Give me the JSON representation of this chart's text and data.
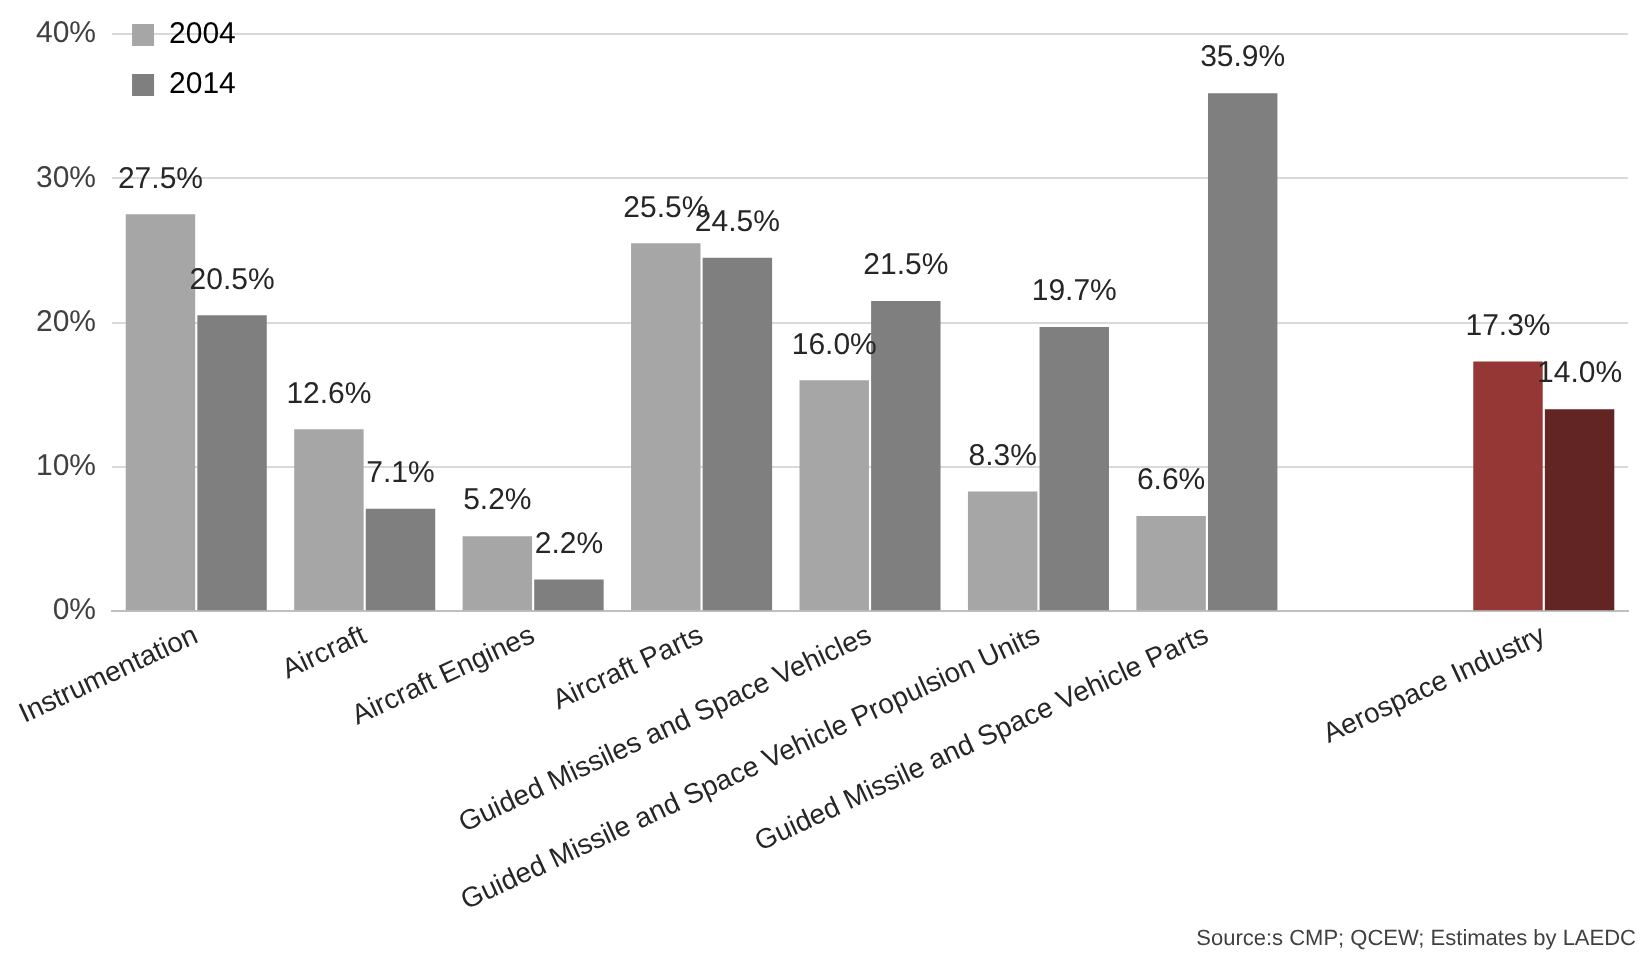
{
  "chart_data": {
    "type": "bar",
    "categories": [
      "Instrumentation",
      "Aircraft",
      "Aircraft Engines",
      "Aircraft Parts",
      "Guided Missiles and Space Vehicles",
      "Guided Missile and Space Vehicle Propulsion Units",
      "Guided Missile and Space Vehicle Parts",
      null,
      "Aerospace Industry"
    ],
    "series": [
      {
        "name": "2004",
        "color": "#a6a6a6",
        "colors": [
          "#a6a6a6",
          "#a6a6a6",
          "#a6a6a6",
          "#a6a6a6",
          "#a6a6a6",
          "#a6a6a6",
          "#a6a6a6",
          "#a6a6a6",
          "#953735"
        ],
        "values": [
          27.5,
          12.6,
          5.2,
          25.5,
          16.0,
          8.3,
          6.6,
          null,
          17.3
        ],
        "value_labels": [
          "27.5%",
          "12.6%",
          "5.2%",
          "25.5%",
          "16.0%",
          "8.3%",
          "6.6%",
          null,
          "17.3%"
        ]
      },
      {
        "name": "2014",
        "color": "#7f7f7f",
        "colors": [
          "#7f7f7f",
          "#7f7f7f",
          "#7f7f7f",
          "#7f7f7f",
          "#7f7f7f",
          "#7f7f7f",
          "#7f7f7f",
          "#7f7f7f",
          "#632523"
        ],
        "values": [
          20.5,
          7.1,
          2.2,
          24.5,
          21.5,
          19.7,
          35.9,
          null,
          14.0
        ],
        "value_labels": [
          "20.5%",
          "7.1%",
          "2.2%",
          "24.5%",
          "21.5%",
          "19.7%",
          "35.9%",
          null,
          "14.0%"
        ]
      }
    ],
    "ylim": [
      0,
      40
    ],
    "yticks": [
      {
        "value": 0,
        "label": "0%"
      },
      {
        "value": 10,
        "label": "10%"
      },
      {
        "value": 20,
        "label": "20%"
      },
      {
        "value": 30,
        "label": "30%"
      },
      {
        "value": 40,
        "label": "40%"
      }
    ],
    "grid": "y",
    "legend": "top left",
    "annotations": [
      "Source:s CMP; QCEW; Estimates by LAEDC"
    ]
  }
}
